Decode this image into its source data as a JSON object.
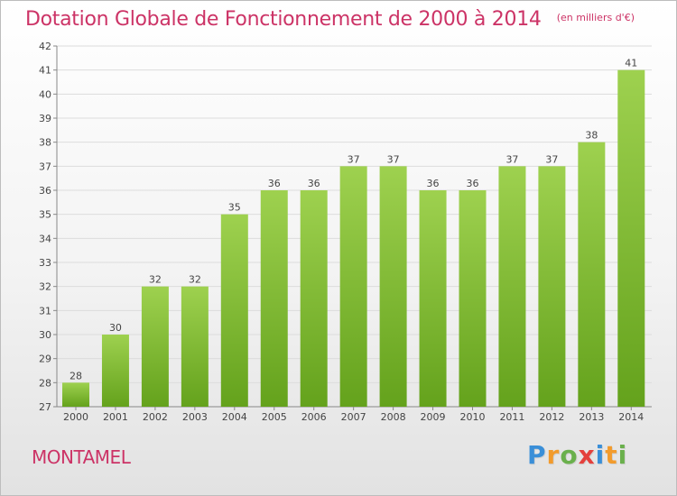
{
  "title": "Dotation Globale de Fonctionnement de 2000 à 2014",
  "unit_note": "(en milliers d'€)",
  "commune": "MONTAMEL",
  "logo": {
    "letters": [
      "P",
      "r",
      "o",
      "x",
      "i",
      "t",
      "i"
    ],
    "colors": [
      "#3a8fd8",
      "#f29b2c",
      "#6ab04c",
      "#e4403c",
      "#3a8fd8",
      "#f29b2c",
      "#6ab04c"
    ]
  },
  "colors": {
    "title": "#cc3366",
    "bar_light": "#9ed14f",
    "bar_dark": "#64a21c"
  },
  "chart_data": {
    "type": "bar",
    "categories": [
      "2000",
      "2001",
      "2002",
      "2003",
      "2004",
      "2005",
      "2006",
      "2007",
      "2008",
      "2009",
      "2010",
      "2011",
      "2012",
      "2013",
      "2014"
    ],
    "values": [
      28,
      30,
      32,
      32,
      35,
      36,
      36,
      37,
      37,
      36,
      36,
      37,
      37,
      38,
      41
    ],
    "data_labels": [
      "28",
      "30",
      "32",
      "32",
      "35",
      "36",
      "36",
      "37",
      "37",
      "36",
      "36",
      "37",
      "37",
      "38",
      "41"
    ],
    "yticks": [
      27,
      28,
      29,
      30,
      31,
      32,
      33,
      34,
      35,
      36,
      37,
      38,
      39,
      40,
      41,
      42
    ],
    "ylim": [
      27,
      42
    ],
    "grid": "horizontal",
    "legend": "none"
  }
}
